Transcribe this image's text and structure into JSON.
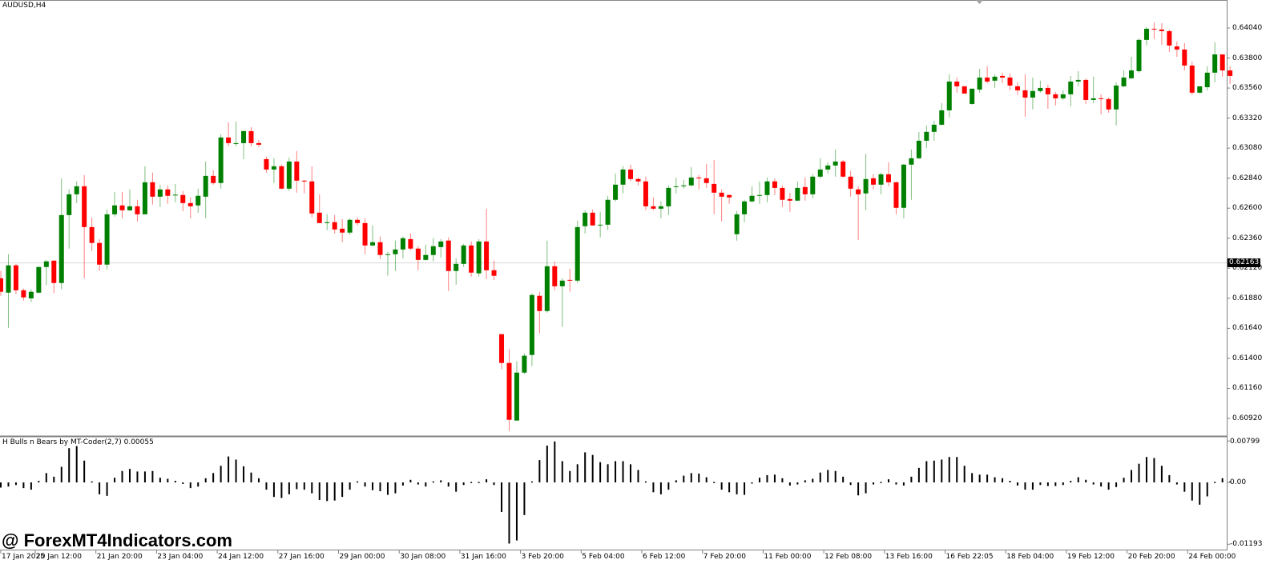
{
  "chart_title": "AUDUSD,H4",
  "indicator_title": "H Bulls n Bears by MT-Coder(2,7) 0.00055",
  "watermark": "@ ForexMT4Indicators.com",
  "current_price_label": "0.62163",
  "colors": {
    "bull": "#008000",
    "bear": "#ff0000",
    "histogram": "#000000",
    "price_line": "#d8d8d8"
  },
  "chart_data": [
    {
      "type": "candlestick",
      "title": "AUDUSD,H4",
      "ylim": [
        0.6081,
        0.6427
      ],
      "price_ticks": [
        "0.64040",
        "0.63800",
        "0.63560",
        "0.63320",
        "0.63080",
        "0.62840",
        "0.62600",
        "0.62360",
        "0.62120",
        "0.61880",
        "0.61640",
        "0.61400",
        "0.61160",
        "0.60920"
      ],
      "time_ticks": [
        "17 Jan 2025",
        "20 Jan 12:00",
        "21 Jan 20:00",
        "23 Jan 04:00",
        "24 Jan 12:00",
        "27 Jan 16:00",
        "29 Jan 00:00",
        "30 Jan 08:00",
        "31 Jan 16:00",
        "3 Feb 20:00",
        "5 Feb 04:00",
        "6 Feb 12:00",
        "7 Feb 20:00",
        "11 Feb 00:00",
        "12 Feb 08:00",
        "13 Feb 16:00",
        "16 Feb 22:05",
        "18 Feb 04:00",
        "19 Feb 12:00",
        "20 Feb 20:00",
        "24 Feb 00:00"
      ],
      "current_price": 0.62163,
      "ohlc_fields": [
        "open",
        "high",
        "low",
        "close"
      ],
      "candles": [
        [
          0.6204,
          0.62098,
          0.619,
          0.61932
        ],
        [
          0.61925,
          0.62232,
          0.61644,
          0.62143
        ],
        [
          0.62143,
          0.62155,
          0.61912,
          0.61944
        ],
        [
          0.61944,
          0.61957,
          0.61861,
          0.61887
        ],
        [
          0.61879,
          0.61951,
          0.61849,
          0.61932
        ],
        [
          0.61925,
          0.62136,
          0.61919,
          0.6213
        ],
        [
          0.6213,
          0.62187,
          0.61983,
          0.62175
        ],
        [
          0.62181,
          0.62181,
          0.61919,
          0.62002
        ],
        [
          0.62002,
          0.62839,
          0.61951,
          0.62545
        ],
        [
          0.62545,
          0.6275,
          0.62277,
          0.62711
        ],
        [
          0.62711,
          0.62814,
          0.62641,
          0.62775
        ],
        [
          0.62775,
          0.62865,
          0.6204,
          0.62449
        ],
        [
          0.62449,
          0.62526,
          0.62258,
          0.62322
        ],
        [
          0.62322,
          0.62353,
          0.62098,
          0.62149
        ],
        [
          0.62149,
          0.6259,
          0.6211,
          0.62551
        ],
        [
          0.62551,
          0.6273,
          0.62532,
          0.62622
        ],
        [
          0.62622,
          0.6273,
          0.62519,
          0.62583
        ],
        [
          0.62583,
          0.6275,
          0.62577,
          0.62615
        ],
        [
          0.62615,
          0.62667,
          0.62494,
          0.62551
        ],
        [
          0.62551,
          0.62935,
          0.62551,
          0.62807
        ],
        [
          0.62807,
          0.62884,
          0.62628,
          0.62692
        ],
        [
          0.62692,
          0.62788,
          0.62609,
          0.6275
        ],
        [
          0.6275,
          0.62782,
          0.62635,
          0.62699
        ],
        [
          0.62705,
          0.62794,
          0.62647,
          0.62708
        ],
        [
          0.62705,
          0.62737,
          0.62577,
          0.62641
        ],
        [
          0.62641,
          0.62686,
          0.62519,
          0.62615
        ],
        [
          0.62622,
          0.62756,
          0.62564,
          0.62699
        ],
        [
          0.62692,
          0.62973,
          0.62519,
          0.62858
        ],
        [
          0.62858,
          0.62903,
          0.62788,
          0.62801
        ],
        [
          0.62801,
          0.63191,
          0.62756,
          0.63165
        ],
        [
          0.63165,
          0.63286,
          0.63095,
          0.6312
        ],
        [
          0.6312,
          0.63293,
          0.63095,
          0.6312
        ],
        [
          0.6312,
          0.63222,
          0.62992,
          0.63216
        ],
        [
          0.63216,
          0.63248,
          0.63095,
          0.6312
        ],
        [
          0.6312,
          0.63146,
          0.63088,
          0.63107
        ],
        [
          0.62992,
          0.63012,
          0.62884,
          0.62909
        ],
        [
          0.62909,
          0.62999,
          0.62801,
          0.62935
        ],
        [
          0.62935,
          0.62948,
          0.6275,
          0.62756
        ],
        [
          0.62756,
          0.63005,
          0.62737,
          0.62973
        ],
        [
          0.62973,
          0.63056,
          0.62724,
          0.6282
        ],
        [
          0.6282,
          0.62826,
          0.62718,
          0.62814
        ],
        [
          0.62814,
          0.62935,
          0.62526,
          0.62558
        ],
        [
          0.62564,
          0.62711,
          0.62481,
          0.62481
        ],
        [
          0.62481,
          0.62551,
          0.62424,
          0.62488
        ],
        [
          0.62488,
          0.62545,
          0.62398,
          0.6243
        ],
        [
          0.62436,
          0.62513,
          0.62328,
          0.62405
        ],
        [
          0.62405,
          0.62519,
          0.62387,
          0.62507
        ],
        [
          0.62507,
          0.62526,
          0.62462,
          0.62481
        ],
        [
          0.62481,
          0.62519,
          0.62232,
          0.62302
        ],
        [
          0.62302,
          0.62462,
          0.62296,
          0.62328
        ],
        [
          0.62328,
          0.62373,
          0.62194,
          0.62226
        ],
        [
          0.62226,
          0.62251,
          0.6206,
          0.62232
        ],
        [
          0.62232,
          0.62341,
          0.62098,
          0.6227
        ],
        [
          0.6227,
          0.62373,
          0.622,
          0.6236
        ],
        [
          0.62353,
          0.62398,
          0.62264,
          0.62277
        ],
        [
          0.62277,
          0.62296,
          0.62104,
          0.62187
        ],
        [
          0.62187,
          0.62309,
          0.62181,
          0.62226
        ],
        [
          0.62226,
          0.6236,
          0.62175,
          0.62296
        ],
        [
          0.62289,
          0.62353,
          0.62206,
          0.62334
        ],
        [
          0.62341,
          0.62366,
          0.61938,
          0.62098
        ],
        [
          0.62098,
          0.622,
          0.61989,
          0.62155
        ],
        [
          0.62155,
          0.62315,
          0.6213,
          0.62302
        ],
        [
          0.62302,
          0.62334,
          0.62053,
          0.62085
        ],
        [
          0.62079,
          0.62353,
          0.62053,
          0.62334
        ],
        [
          0.62334,
          0.62596,
          0.62034,
          0.62104
        ],
        [
          0.62104,
          0.62181,
          0.62027,
          0.6206
        ],
        [
          0.61593,
          0.61593,
          0.61312,
          0.61363
        ],
        [
          0.61363,
          0.61472,
          0.6082,
          0.60909
        ],
        [
          0.60903,
          0.61376,
          0.60903,
          0.61286
        ],
        [
          0.61286,
          0.6144,
          0.61274,
          0.61421
        ],
        [
          0.61427,
          0.61919,
          0.61338,
          0.61906
        ],
        [
          0.619,
          0.61932,
          0.61599,
          0.61778
        ],
        [
          0.61778,
          0.62341,
          0.61766,
          0.62136
        ],
        [
          0.62136,
          0.62175,
          0.61944,
          0.61976
        ],
        [
          0.61976,
          0.6204,
          0.61651,
          0.62021
        ],
        [
          0.62027,
          0.62117,
          0.61932,
          0.62021
        ],
        [
          0.62021,
          0.625,
          0.62002,
          0.62449
        ],
        [
          0.62456,
          0.62583,
          0.62398,
          0.62564
        ],
        [
          0.62564,
          0.6259,
          0.62462,
          0.62462
        ],
        [
          0.62462,
          0.62571,
          0.62366,
          0.62468
        ],
        [
          0.62468,
          0.62699,
          0.62424,
          0.62667
        ],
        [
          0.62667,
          0.62877,
          0.62654,
          0.62788
        ],
        [
          0.62788,
          0.62935,
          0.62718,
          0.62909
        ],
        [
          0.62909,
          0.62948,
          0.62814,
          0.62833
        ],
        [
          0.62833,
          0.62845,
          0.62782,
          0.62814
        ],
        [
          0.62814,
          0.62852,
          0.62583,
          0.62615
        ],
        [
          0.62615,
          0.62686,
          0.62583,
          0.62596
        ],
        [
          0.62596,
          0.62654,
          0.62519,
          0.62615
        ],
        [
          0.62615,
          0.62782,
          0.62545,
          0.62762
        ],
        [
          0.62769,
          0.62845,
          0.62718,
          0.62775
        ],
        [
          0.62775,
          0.62826,
          0.62756,
          0.62782
        ],
        [
          0.62782,
          0.62928,
          0.62775,
          0.62845
        ],
        [
          0.62845,
          0.62865,
          0.6275,
          0.62839
        ],
        [
          0.62839,
          0.62954,
          0.62762,
          0.62801
        ],
        [
          0.62794,
          0.62986,
          0.62551,
          0.62724
        ],
        [
          0.62724,
          0.6275,
          0.62494,
          0.62692
        ],
        [
          0.62705,
          0.62711,
          0.62635,
          0.62686
        ],
        [
          0.62392,
          0.62577,
          0.62341,
          0.62551
        ],
        [
          0.62551,
          0.62667,
          0.62488,
          0.62654
        ],
        [
          0.62654,
          0.62775,
          0.62647,
          0.62699
        ],
        [
          0.62699,
          0.62814,
          0.62635,
          0.62705
        ],
        [
          0.62705,
          0.62845,
          0.62647,
          0.62814
        ],
        [
          0.62814,
          0.62839,
          0.62705,
          0.62762
        ],
        [
          0.62762,
          0.62782,
          0.62609,
          0.62667
        ],
        [
          0.62673,
          0.62724,
          0.62571,
          0.6266
        ],
        [
          0.6266,
          0.62814,
          0.6266,
          0.62762
        ],
        [
          0.62769,
          0.62845,
          0.6266,
          0.62711
        ],
        [
          0.62711,
          0.62871,
          0.62679,
          0.62852
        ],
        [
          0.62852,
          0.62999,
          0.62839,
          0.62909
        ],
        [
          0.62909,
          0.62967,
          0.62877,
          0.62941
        ],
        [
          0.62941,
          0.63069,
          0.62852,
          0.62973
        ],
        [
          0.62973,
          0.62986,
          0.62845,
          0.62852
        ],
        [
          0.62852,
          0.62897,
          0.62692,
          0.62756
        ],
        [
          0.6275,
          0.62775,
          0.62347,
          0.62711
        ],
        [
          0.62718,
          0.63037,
          0.62583,
          0.62833
        ],
        [
          0.62839,
          0.62871,
          0.6275,
          0.62788
        ],
        [
          0.62788,
          0.62884,
          0.62711,
          0.62871
        ],
        [
          0.62871,
          0.62967,
          0.62775,
          0.62807
        ],
        [
          0.62807,
          0.62814,
          0.62551,
          0.62603
        ],
        [
          0.62603,
          0.62954,
          0.62519,
          0.62948
        ],
        [
          0.62948,
          0.63069,
          0.62667,
          0.62999
        ],
        [
          0.62999,
          0.6321,
          0.62992,
          0.63139
        ],
        [
          0.63139,
          0.63261,
          0.63082,
          0.6321
        ],
        [
          0.6321,
          0.63299,
          0.63139,
          0.63267
        ],
        [
          0.63267,
          0.6344,
          0.63261,
          0.63382
        ],
        [
          0.63382,
          0.6367,
          0.63325,
          0.63612
        ],
        [
          0.63612,
          0.63644,
          0.63523,
          0.63574
        ],
        [
          0.63574,
          0.63574,
          0.63516,
          0.63516
        ],
        [
          0.63433,
          0.63555,
          0.63427,
          0.63555
        ],
        [
          0.63548,
          0.63714,
          0.63523,
          0.63644
        ],
        [
          0.63644,
          0.63734,
          0.63599,
          0.63612
        ],
        [
          0.63619,
          0.6367,
          0.63561,
          0.63651
        ],
        [
          0.63657,
          0.63683,
          0.63599,
          0.63644
        ],
        [
          0.63644,
          0.63676,
          0.63542,
          0.6358
        ],
        [
          0.63574,
          0.63606,
          0.63504,
          0.63542
        ],
        [
          0.63542,
          0.6367,
          0.63331,
          0.63484
        ],
        [
          0.63484,
          0.63644,
          0.63389,
          0.63536
        ],
        [
          0.63536,
          0.63619,
          0.63523,
          0.63561
        ],
        [
          0.63561,
          0.63587,
          0.63395,
          0.6351
        ],
        [
          0.6351,
          0.63529,
          0.63421,
          0.63478
        ],
        [
          0.63478,
          0.63542,
          0.63465,
          0.6351
        ],
        [
          0.6351,
          0.63657,
          0.63414,
          0.63612
        ],
        [
          0.63612,
          0.63695,
          0.63574,
          0.63625
        ],
        [
          0.63625,
          0.63638,
          0.63433,
          0.63465
        ],
        [
          0.63465,
          0.63651,
          0.6344,
          0.63478
        ],
        [
          0.63478,
          0.6351,
          0.6335,
          0.63472
        ],
        [
          0.63472,
          0.63484,
          0.63363,
          0.63389
        ],
        [
          0.63389,
          0.63606,
          0.63261,
          0.6358
        ],
        [
          0.63574,
          0.63701,
          0.63567,
          0.63644
        ],
        [
          0.63638,
          0.6381,
          0.63631,
          0.63701
        ],
        [
          0.63695,
          0.63957,
          0.63683,
          0.63945
        ],
        [
          0.63945,
          0.64047,
          0.639,
          0.64034
        ],
        [
          0.64034,
          0.64085,
          0.63951,
          0.64028
        ],
        [
          0.64028,
          0.64079,
          0.63906,
          0.64015
        ],
        [
          0.64015,
          0.64028,
          0.63849,
          0.639
        ],
        [
          0.63893,
          0.63932,
          0.6381,
          0.63868
        ],
        [
          0.63868,
          0.63919,
          0.63701,
          0.6374
        ],
        [
          0.6374,
          0.63772,
          0.63504,
          0.63523
        ],
        [
          0.63523,
          0.63574,
          0.63516,
          0.63574
        ],
        [
          0.63567,
          0.63734,
          0.63542,
          0.63683
        ],
        [
          0.63683,
          0.63925,
          0.63606,
          0.63829
        ],
        [
          0.63829,
          0.63829,
          0.63651,
          0.63701
        ],
        [
          0.63701,
          0.63734,
          0.63593,
          0.63657
        ]
      ]
    },
    {
      "type": "bar",
      "title": "H Bulls n Bears by MT-Coder(2,7) 0.00055",
      "ylim": [
        -0.01193,
        0.00799
      ],
      "y_ticks": [
        "0.00799",
        "0.00",
        "-0.01193"
      ],
      "values": [
        -0.001,
        -0.0008,
        -0.0005,
        -0.0011,
        -0.0014,
        0.0003,
        0.0018,
        0.0011,
        0.003,
        0.0066,
        0.007,
        0.0042,
        0.0002,
        -0.0023,
        -0.0026,
        0.0009,
        0.0022,
        0.0026,
        0.0021,
        0.0021,
        0.0022,
        0.0009,
        0.0007,
        0.0003,
        -0.0003,
        -0.0011,
        -0.0008,
        0.0008,
        0.0018,
        0.0032,
        0.005,
        0.0044,
        0.0031,
        0.0019,
        0.0008,
        -0.0014,
        -0.0028,
        -0.003,
        -0.0023,
        -0.0013,
        -0.0014,
        -0.0021,
        -0.0034,
        -0.0036,
        -0.0035,
        -0.0028,
        -0.0014,
        0.0002,
        -0.0008,
        -0.0015,
        -0.0017,
        -0.0024,
        -0.0021,
        -0.0006,
        0.0005,
        -0.0004,
        -0.0008,
        0.0002,
        0.0004,
        -0.0008,
        -0.0018,
        -0.0005,
        0.0001,
        0.0001,
        0.0006,
        -0.0005,
        -0.0057,
        -0.0118,
        -0.0112,
        -0.0063,
        0.0002,
        0.0043,
        0.0071,
        0.0079,
        0.0041,
        0.0022,
        0.0035,
        0.0058,
        0.0053,
        0.0039,
        0.0035,
        0.0041,
        0.0041,
        0.0035,
        0.0024,
        0.0002,
        -0.0019,
        -0.0023,
        -0.0014,
        0.0004,
        0.0013,
        0.0018,
        0.0017,
        0.001,
        0.0001,
        -0.0014,
        -0.0019,
        -0.0023,
        -0.0024,
        -0.0002,
        0.0009,
        0.0014,
        0.0015,
        0.0008,
        -0.0006,
        -0.0004,
        0.0004,
        0.0007,
        0.0019,
        0.0024,
        0.0022,
        0.0011,
        -0.0005,
        -0.0025,
        -0.0021,
        -0.0004,
        0.0001,
        0.0006,
        -0.0004,
        -0.0006,
        0.0011,
        0.0028,
        0.0041,
        0.0042,
        0.0044,
        0.0049,
        0.0049,
        0.0032,
        0.0018,
        0.0015,
        0.0015,
        0.001,
        0.0008,
        0.0003,
        -0.0006,
        -0.0014,
        -0.0014,
        -0.0005,
        -0.0007,
        -0.0007,
        -0.0005,
        0.0003,
        0.001,
        0.0005,
        -0.0004,
        -0.0008,
        -0.0014,
        -0.0009,
        0.0009,
        0.0024,
        0.0036,
        0.0049,
        0.0047,
        0.0032,
        0.0014,
        -0.0004,
        -0.0018,
        -0.0035,
        -0.0043,
        -0.0027,
        0.0001,
        0.0008,
        0.0002
      ]
    }
  ]
}
